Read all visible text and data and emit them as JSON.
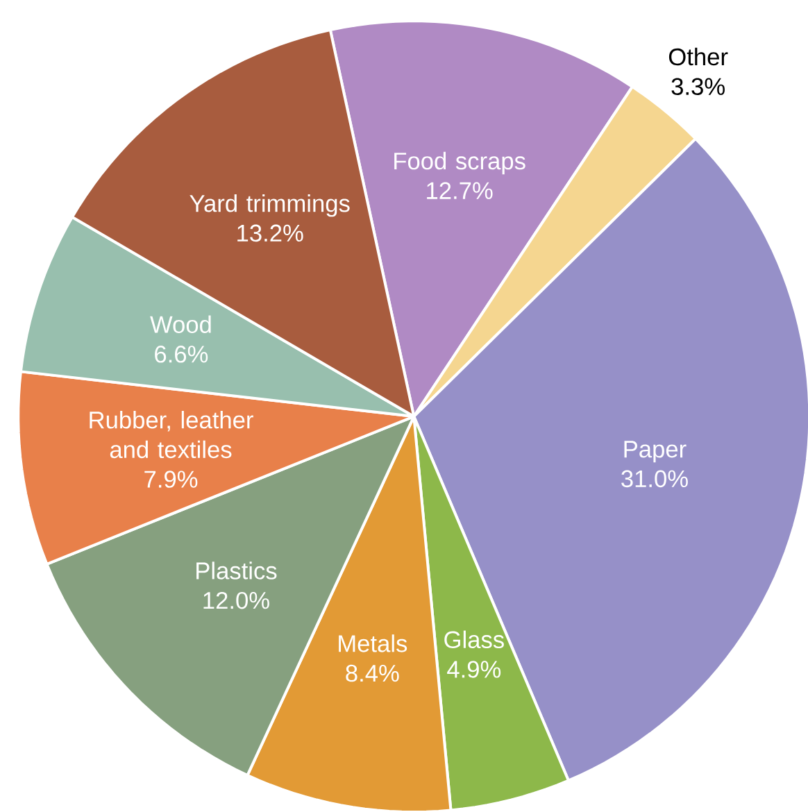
{
  "chart_data": {
    "type": "pie",
    "categories": [
      "Food scraps",
      "Other",
      "Paper",
      "Glass",
      "Metals",
      "Plastics",
      "Rubber, leather and textiles",
      "Wood",
      "Yard trimmings"
    ],
    "values": [
      12.7,
      3.3,
      31.0,
      4.9,
      8.4,
      12.0,
      7.9,
      6.6,
      13.2
    ],
    "value_labels": [
      "12.7%",
      "3.3%",
      "31.0%",
      "4.9%",
      "8.4%",
      "12.0%",
      "7.9%",
      "6.6%",
      "13.2%"
    ],
    "colors": [
      "#b08ac4",
      "#f5d690",
      "#9690c8",
      "#8db84a",
      "#e29a35",
      "#86a07f",
      "#e8804a",
      "#98bfae",
      "#a85c3e"
    ]
  }
}
